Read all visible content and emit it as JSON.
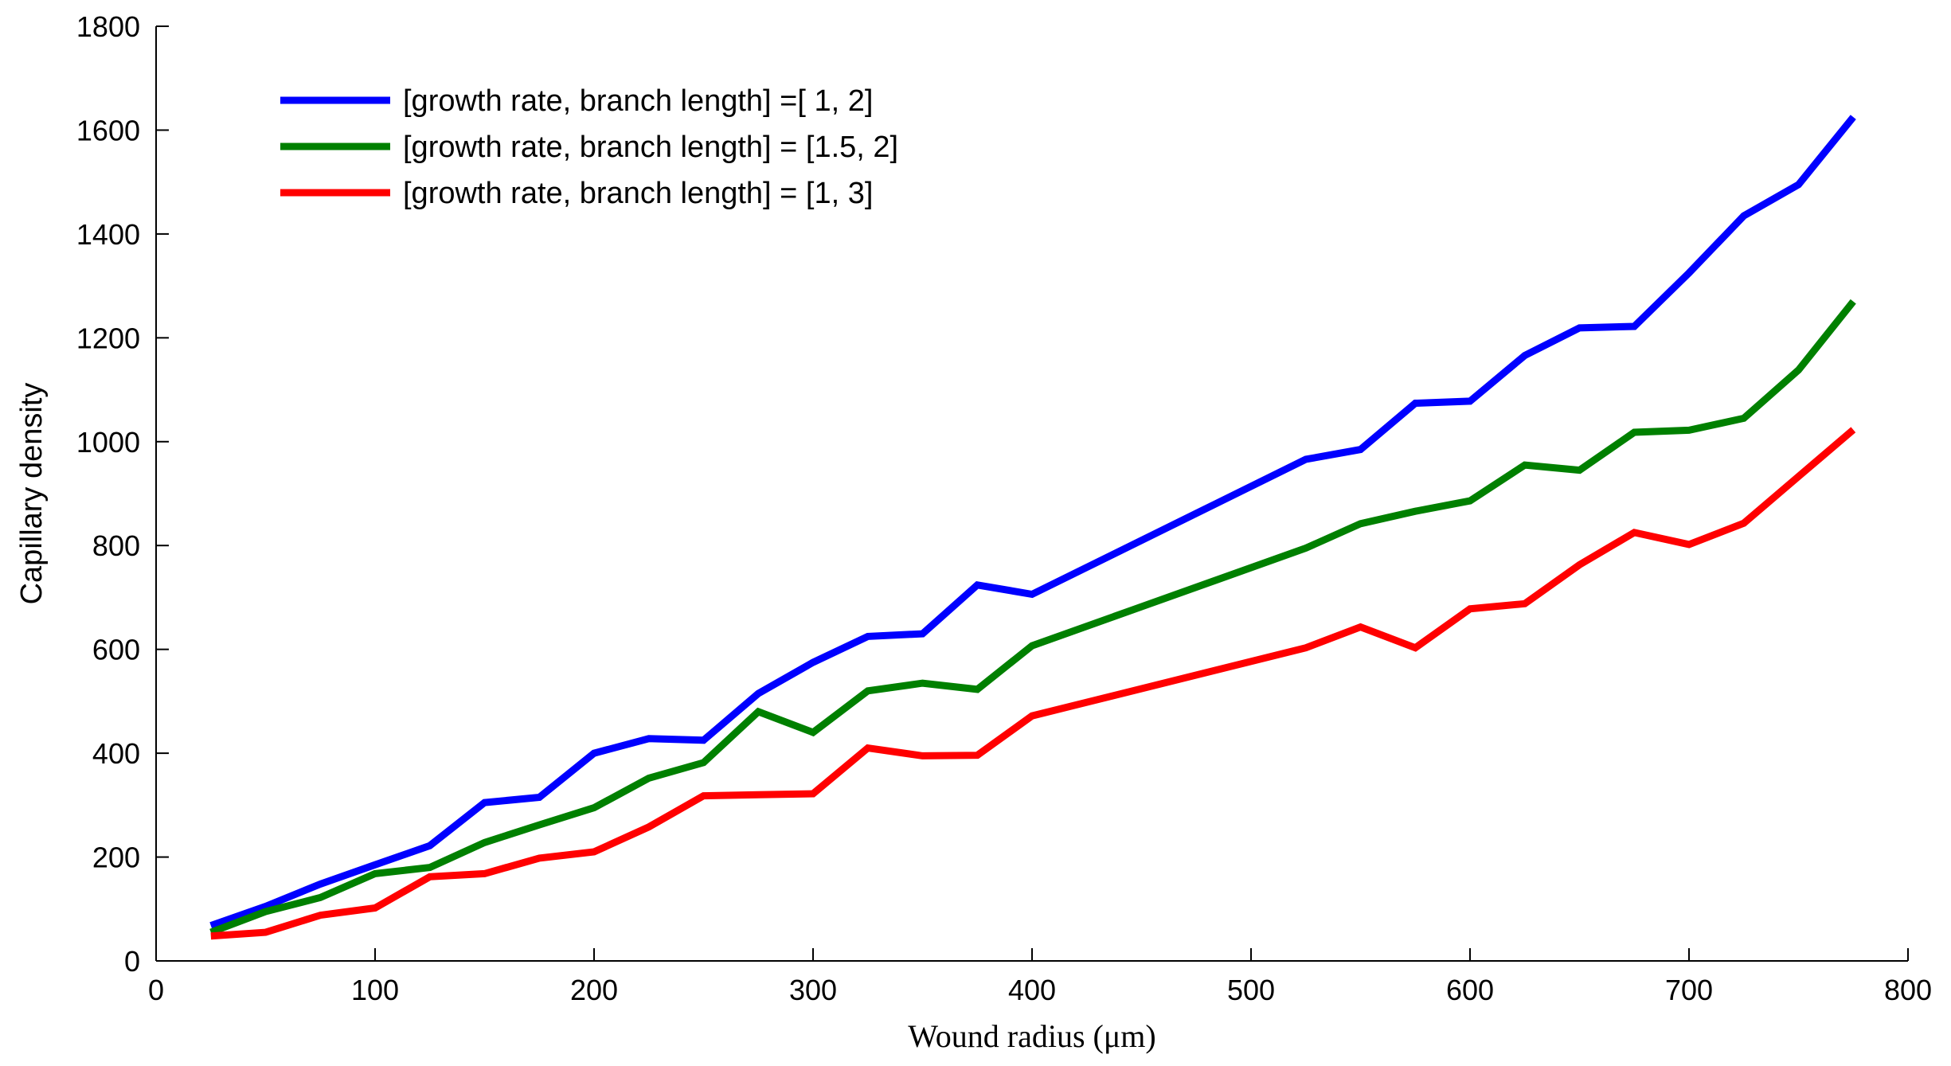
{
  "chart_data": {
    "type": "line",
    "title": "",
    "xlabel": "Wound radius (μm)",
    "ylabel": "Capillary density",
    "xlim": [
      0,
      800
    ],
    "ylim": [
      0,
      1800
    ],
    "xticks": [
      0,
      100,
      200,
      300,
      400,
      500,
      600,
      700,
      800
    ],
    "yticks": [
      0,
      200,
      400,
      600,
      800,
      1000,
      1200,
      1400,
      1600,
      1800
    ],
    "grid": false,
    "legend_position": "top-left",
    "series": [
      {
        "name": "[growth rate, branch length] =[ 1, 2]",
        "color": "#0000ff",
        "x": [
          25,
          50,
          75,
          100,
          125,
          150,
          175,
          200,
          225,
          250,
          275,
          300,
          325,
          350,
          375,
          400,
          525,
          550,
          575,
          600,
          625,
          650,
          675,
          700,
          725,
          750,
          775
        ],
        "values": [
          68,
          105,
          148,
          185,
          222,
          305,
          315,
          400,
          428,
          425,
          515,
          575,
          625,
          630,
          724,
          706,
          966,
          985,
          1074,
          1078,
          1166,
          1219,
          1222,
          1325,
          1435,
          1495,
          1625
        ]
      },
      {
        "name": "[growth rate, branch length] = [1.5, 2]",
        "color": "#008000",
        "x": [
          25,
          50,
          75,
          100,
          125,
          150,
          175,
          200,
          225,
          250,
          275,
          300,
          325,
          350,
          375,
          400,
          525,
          550,
          575,
          600,
          625,
          650,
          675,
          700,
          725,
          750,
          775
        ],
        "values": [
          55,
          95,
          122,
          168,
          180,
          228,
          262,
          295,
          352,
          382,
          480,
          440,
          520,
          535,
          523,
          607,
          795,
          842,
          866,
          886,
          955,
          945,
          1018,
          1022,
          1045,
          1138,
          1270
        ]
      },
      {
        "name": "[growth rate, branch length] = [1, 3]",
        "color": "#ff0000",
        "x": [
          25,
          50,
          75,
          100,
          125,
          150,
          175,
          200,
          225,
          250,
          275,
          300,
          325,
          350,
          375,
          400,
          525,
          550,
          575,
          600,
          625,
          650,
          675,
          700,
          725,
          750,
          775
        ],
        "values": [
          48,
          55,
          88,
          102,
          162,
          168,
          198,
          210,
          258,
          318,
          320,
          322,
          410,
          395,
          396,
          472,
          603,
          643,
          603,
          678,
          688,
          763,
          825,
          802,
          843,
          933,
          1023
        ]
      }
    ]
  }
}
